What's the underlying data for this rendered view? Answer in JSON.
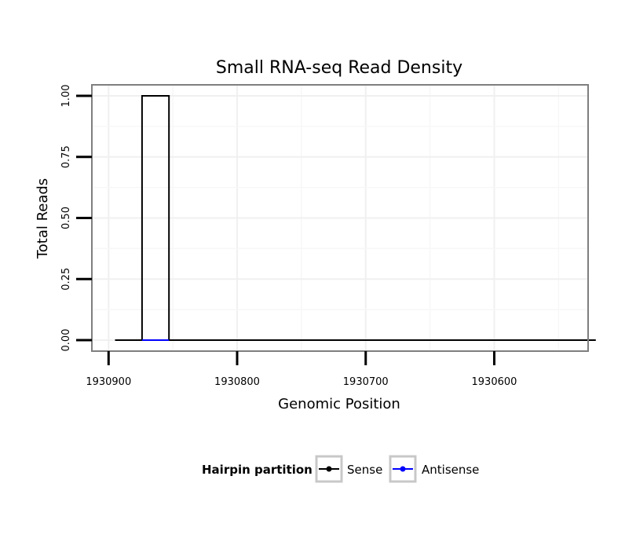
{
  "chart_data": {
    "type": "line",
    "title": "Small RNA-seq Read Density",
    "xlabel": "Genomic Position",
    "ylabel": "Total Reads",
    "x_reversed": true,
    "xlim": [
      1930913,
      1930527
    ],
    "ylim": [
      -0.045,
      1.045
    ],
    "x_ticks": [
      1930900,
      1930800,
      1930700,
      1930600
    ],
    "x_tick_labels": [
      "1930900",
      "1930800",
      "1930700",
      "1930600"
    ],
    "y_ticks": [
      0,
      0.25,
      0.5,
      0.75,
      1.0
    ],
    "y_tick_labels": [
      "0.00",
      "0.25",
      "0.50",
      "0.75",
      "1.00"
    ],
    "grid": true,
    "legend_position": "bottom",
    "legend_title": "Hairpin partition",
    "series": [
      {
        "name": "Sense",
        "color": "#000000",
        "x": [
          1930895,
          1930874,
          1930874,
          1930853,
          1930853,
          1930521
        ],
        "y": [
          0,
          0,
          1,
          1,
          0,
          0
        ]
      },
      {
        "name": "Antisense",
        "color": "#0000ff",
        "x": [
          1930874,
          1930853
        ],
        "y": [
          0,
          0
        ]
      }
    ]
  }
}
